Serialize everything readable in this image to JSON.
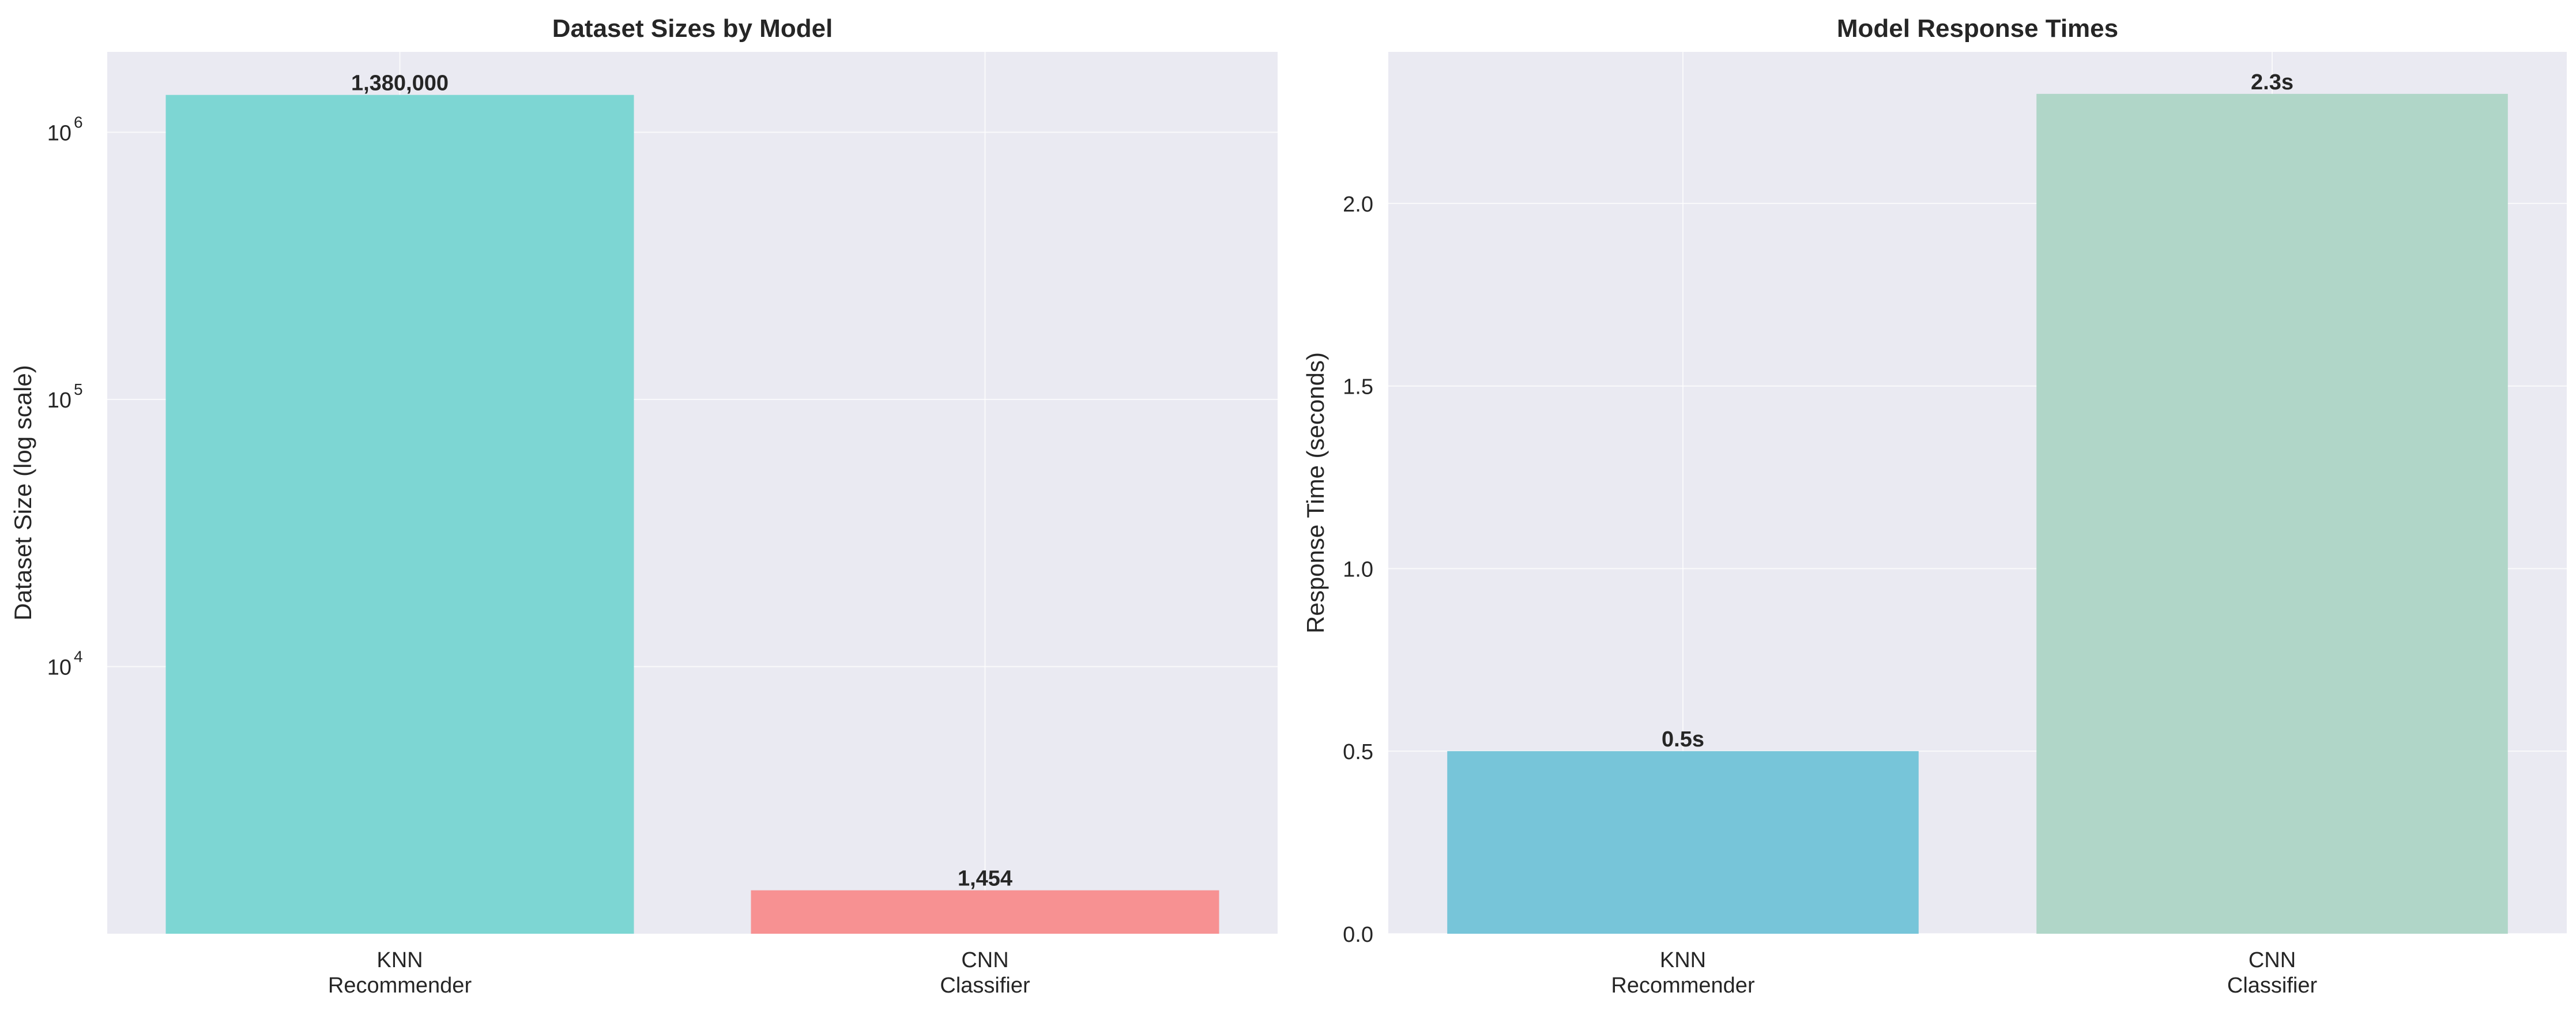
{
  "chart_data": [
    {
      "type": "bar",
      "title": "Dataset Sizes by Model",
      "xlabel": "",
      "ylabel": "Dataset Size (log scale)",
      "yscale": "log",
      "ylim": [
        1000,
        2000000
      ],
      "grid": true,
      "categories": [
        [
          "KNN",
          "Recommender"
        ],
        [
          "CNN",
          "Classifier"
        ]
      ],
      "values": [
        1380000,
        1454
      ],
      "value_labels": [
        "1,380,000",
        "1,454"
      ],
      "colors": [
        "#7dd6d3",
        "#f79192"
      ],
      "yticks": [
        {
          "base": "10",
          "exp": "4",
          "value": 10000
        },
        {
          "base": "10",
          "exp": "5",
          "value": 100000
        },
        {
          "base": "10",
          "exp": "6",
          "value": 1000000
        }
      ]
    },
    {
      "type": "bar",
      "title": "Model Response Times",
      "xlabel": "",
      "ylabel": "Response Time (seconds)",
      "ylim": [
        0,
        2.415
      ],
      "grid": true,
      "categories": [
        [
          "KNN",
          "Recommender"
        ],
        [
          "CNN",
          "Classifier"
        ]
      ],
      "values": [
        0.5,
        2.3
      ],
      "value_labels": [
        "0.5s",
        "2.3s"
      ],
      "colors": [
        "#77c5d9",
        "#b0d6c8"
      ],
      "yticks": [
        {
          "label": "0.0",
          "value": 0
        },
        {
          "label": "0.5",
          "value": 0.5
        },
        {
          "label": "1.0",
          "value": 1
        },
        {
          "label": "1.5",
          "value": 1.5
        },
        {
          "label": "2.0",
          "value": 2
        }
      ]
    }
  ]
}
